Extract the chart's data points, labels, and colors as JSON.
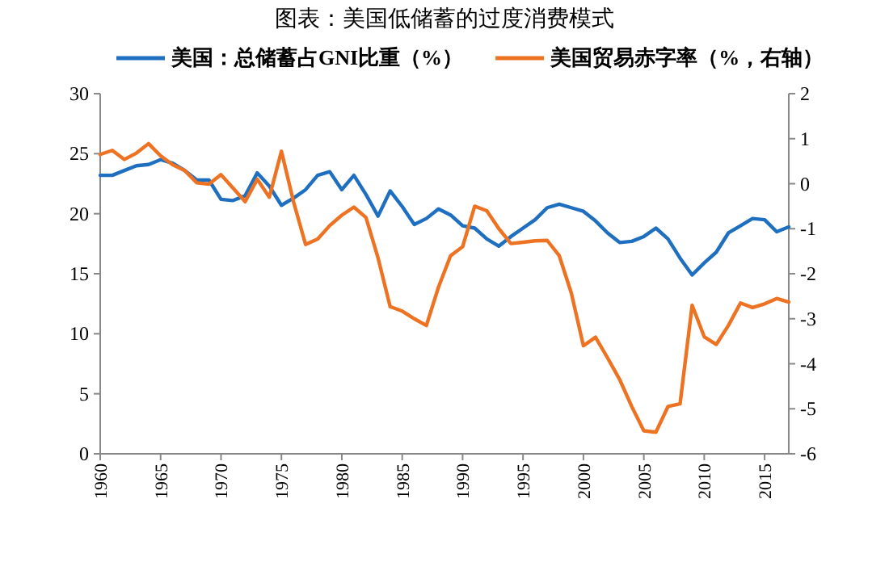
{
  "chart_data": {
    "type": "line",
    "title": "图表：美国低储蓄的过度消费模式",
    "x": [
      1960,
      1961,
      1962,
      1963,
      1964,
      1965,
      1966,
      1967,
      1968,
      1969,
      1970,
      1971,
      1972,
      1973,
      1974,
      1975,
      1976,
      1977,
      1978,
      1979,
      1980,
      1981,
      1982,
      1983,
      1984,
      1985,
      1986,
      1987,
      1988,
      1989,
      1990,
      1991,
      1992,
      1993,
      1994,
      1995,
      1996,
      1997,
      1998,
      1999,
      2000,
      2001,
      2002,
      2003,
      2004,
      2005,
      2006,
      2007,
      2008,
      2009,
      2010,
      2011,
      2012,
      2013,
      2014,
      2015,
      2016,
      2017
    ],
    "series": [
      {
        "name": "美国：总储蓄占GNI比重（%）",
        "color": "#1f6fc0",
        "values": [
          23.2,
          23.2,
          23.6,
          24.0,
          24.1,
          24.5,
          24.2,
          23.6,
          22.8,
          22.8,
          21.2,
          21.1,
          21.5,
          23.4,
          22.3,
          20.7,
          21.3,
          22.0,
          23.2,
          23.5,
          22.0,
          23.2,
          21.6,
          19.8,
          21.9,
          20.6,
          19.1,
          19.6,
          20.4,
          19.9,
          19.0,
          18.8,
          17.9,
          17.3,
          18.1,
          18.8,
          19.5,
          20.5,
          20.8,
          20.5,
          20.2,
          19.4,
          18.4,
          17.6,
          17.7,
          18.1,
          18.8,
          17.9,
          16.3,
          14.9,
          15.9,
          16.8,
          18.4,
          19.0,
          19.6,
          19.5,
          18.5,
          18.9
        ]
      },
      {
        "name": "美国贸易赤字率（%，右轴）",
        "color": "#ed7222",
        "axis": "y2",
        "values": [
          0.65,
          0.74,
          0.54,
          0.68,
          0.89,
          0.62,
          0.42,
          0.29,
          0.02,
          -0.01,
          0.2,
          -0.1,
          -0.4,
          0.1,
          -0.3,
          0.72,
          -0.4,
          -1.35,
          -1.23,
          -0.93,
          -0.7,
          -0.52,
          -0.75,
          -1.65,
          -2.73,
          -2.83,
          -3.0,
          -3.15,
          -2.3,
          -1.6,
          -1.4,
          -0.5,
          -0.6,
          -1.0,
          -1.33,
          -1.3,
          -1.27,
          -1.26,
          -1.6,
          -2.43,
          -3.6,
          -3.41,
          -3.87,
          -4.35,
          -4.95,
          -5.49,
          -5.52,
          -4.95,
          -4.89,
          -2.7,
          -3.4,
          -3.57,
          -3.15,
          -2.65,
          -2.75,
          -2.67,
          -2.55,
          -2.63
        ]
      }
    ],
    "xlim": [
      1960,
      2017
    ],
    "xticks": [
      1960,
      1965,
      1970,
      1975,
      1980,
      1985,
      1990,
      1995,
      2000,
      2005,
      2010,
      2015
    ],
    "ylim": [
      0,
      30
    ],
    "yticks": [
      0,
      5,
      10,
      15,
      20,
      25,
      30
    ],
    "y2lim": [
      -6,
      2
    ],
    "y2ticks": [
      -6,
      -5,
      -4,
      -3,
      -2,
      -1,
      0,
      1,
      2
    ],
    "grid": false,
    "legend": "top",
    "line_style": "solid",
    "marker": "none"
  }
}
